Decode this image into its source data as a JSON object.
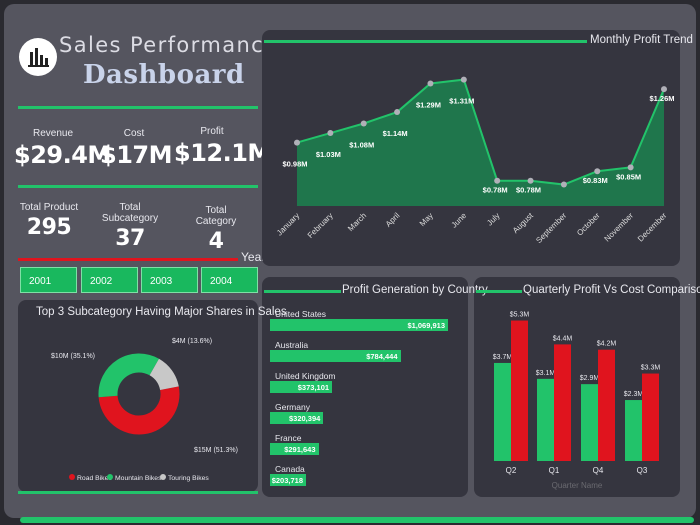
{
  "header": {
    "title_line1": "Sales Performance",
    "title_line2": "Dashboard",
    "logo_icon": "bar-chart-icon"
  },
  "kpis": {
    "revenue": {
      "label": "Revenue",
      "value": "$29.4M"
    },
    "cost": {
      "label": "Cost",
      "value": "$17M"
    },
    "profit": {
      "label": "Profit",
      "value": "$12.1M"
    },
    "total_product": {
      "label": "Total Product",
      "value": "295"
    },
    "total_subcategory": {
      "label": "Total Subcategory",
      "value": "37"
    },
    "total_category": {
      "label": "Total Category",
      "value": "4"
    }
  },
  "year_filter": {
    "label": "Year",
    "options": [
      "2001",
      "2002",
      "2003",
      "2004"
    ]
  },
  "colors": {
    "green": "#22c36a",
    "red": "#e0141e",
    "grey": "#c8c8c8"
  },
  "chart_data": [
    {
      "type": "area",
      "title": "Monthly Profit Trend",
      "x": [
        "January",
        "February",
        "March",
        "April",
        "May",
        "June",
        "July",
        "August",
        "September",
        "October",
        "November",
        "December"
      ],
      "values": [
        0.98,
        1.03,
        1.08,
        1.14,
        1.29,
        1.31,
        0.78,
        0.78,
        0.76,
        0.83,
        0.85,
        1.26
      ],
      "data_labels": [
        "$0.98M",
        "$1.03M",
        "$1.08M",
        "$1.14M",
        "$1.29M",
        "$1.31M",
        "$0.78M",
        "$0.78M",
        "",
        "$0.83M",
        "$0.85M",
        "$1.26M"
      ],
      "unit": "$M"
    },
    {
      "type": "pie",
      "title": "Top 3 Subcategory Having Major Shares in Sales",
      "categories": [
        "Road Bikes",
        "Mountain Bikes",
        "Touring Bikes"
      ],
      "values": [
        15,
        10,
        4
      ],
      "data_labels": [
        "$15M (51.3%)",
        "$10M (35.1%)",
        "$4M (13.6%)"
      ],
      "legend": "bottom"
    },
    {
      "type": "bar",
      "title": "Profit Generation by Country",
      "categories": [
        "United States",
        "Australia",
        "United Kingdom",
        "Germany",
        "France",
        "Canada"
      ],
      "values": [
        1069913,
        784444,
        373101,
        320394,
        291643,
        203718
      ],
      "data_labels": [
        "$1,069,913",
        "$784,444",
        "$373,101",
        "$320,394",
        "$291,643",
        "$203,718"
      ],
      "orientation": "horizontal"
    },
    {
      "type": "bar",
      "title": "Quarterly Profit Vs Cost Comparison",
      "categories": [
        "Q2",
        "Q1",
        "Q4",
        "Q3"
      ],
      "series": [
        {
          "values": [
            3.7,
            3.1,
            2.9,
            2.3
          ],
          "labels": [
            "$3.7M",
            "$3.1M",
            "$2.9M",
            "$2.3M"
          ]
        },
        {
          "values": [
            5.3,
            4.4,
            4.2,
            3.3
          ],
          "labels": [
            "$5.3M",
            "$4.4M",
            "$4.2M",
            "$3.3M"
          ]
        }
      ],
      "xlabel": "Quarter Name"
    }
  ]
}
